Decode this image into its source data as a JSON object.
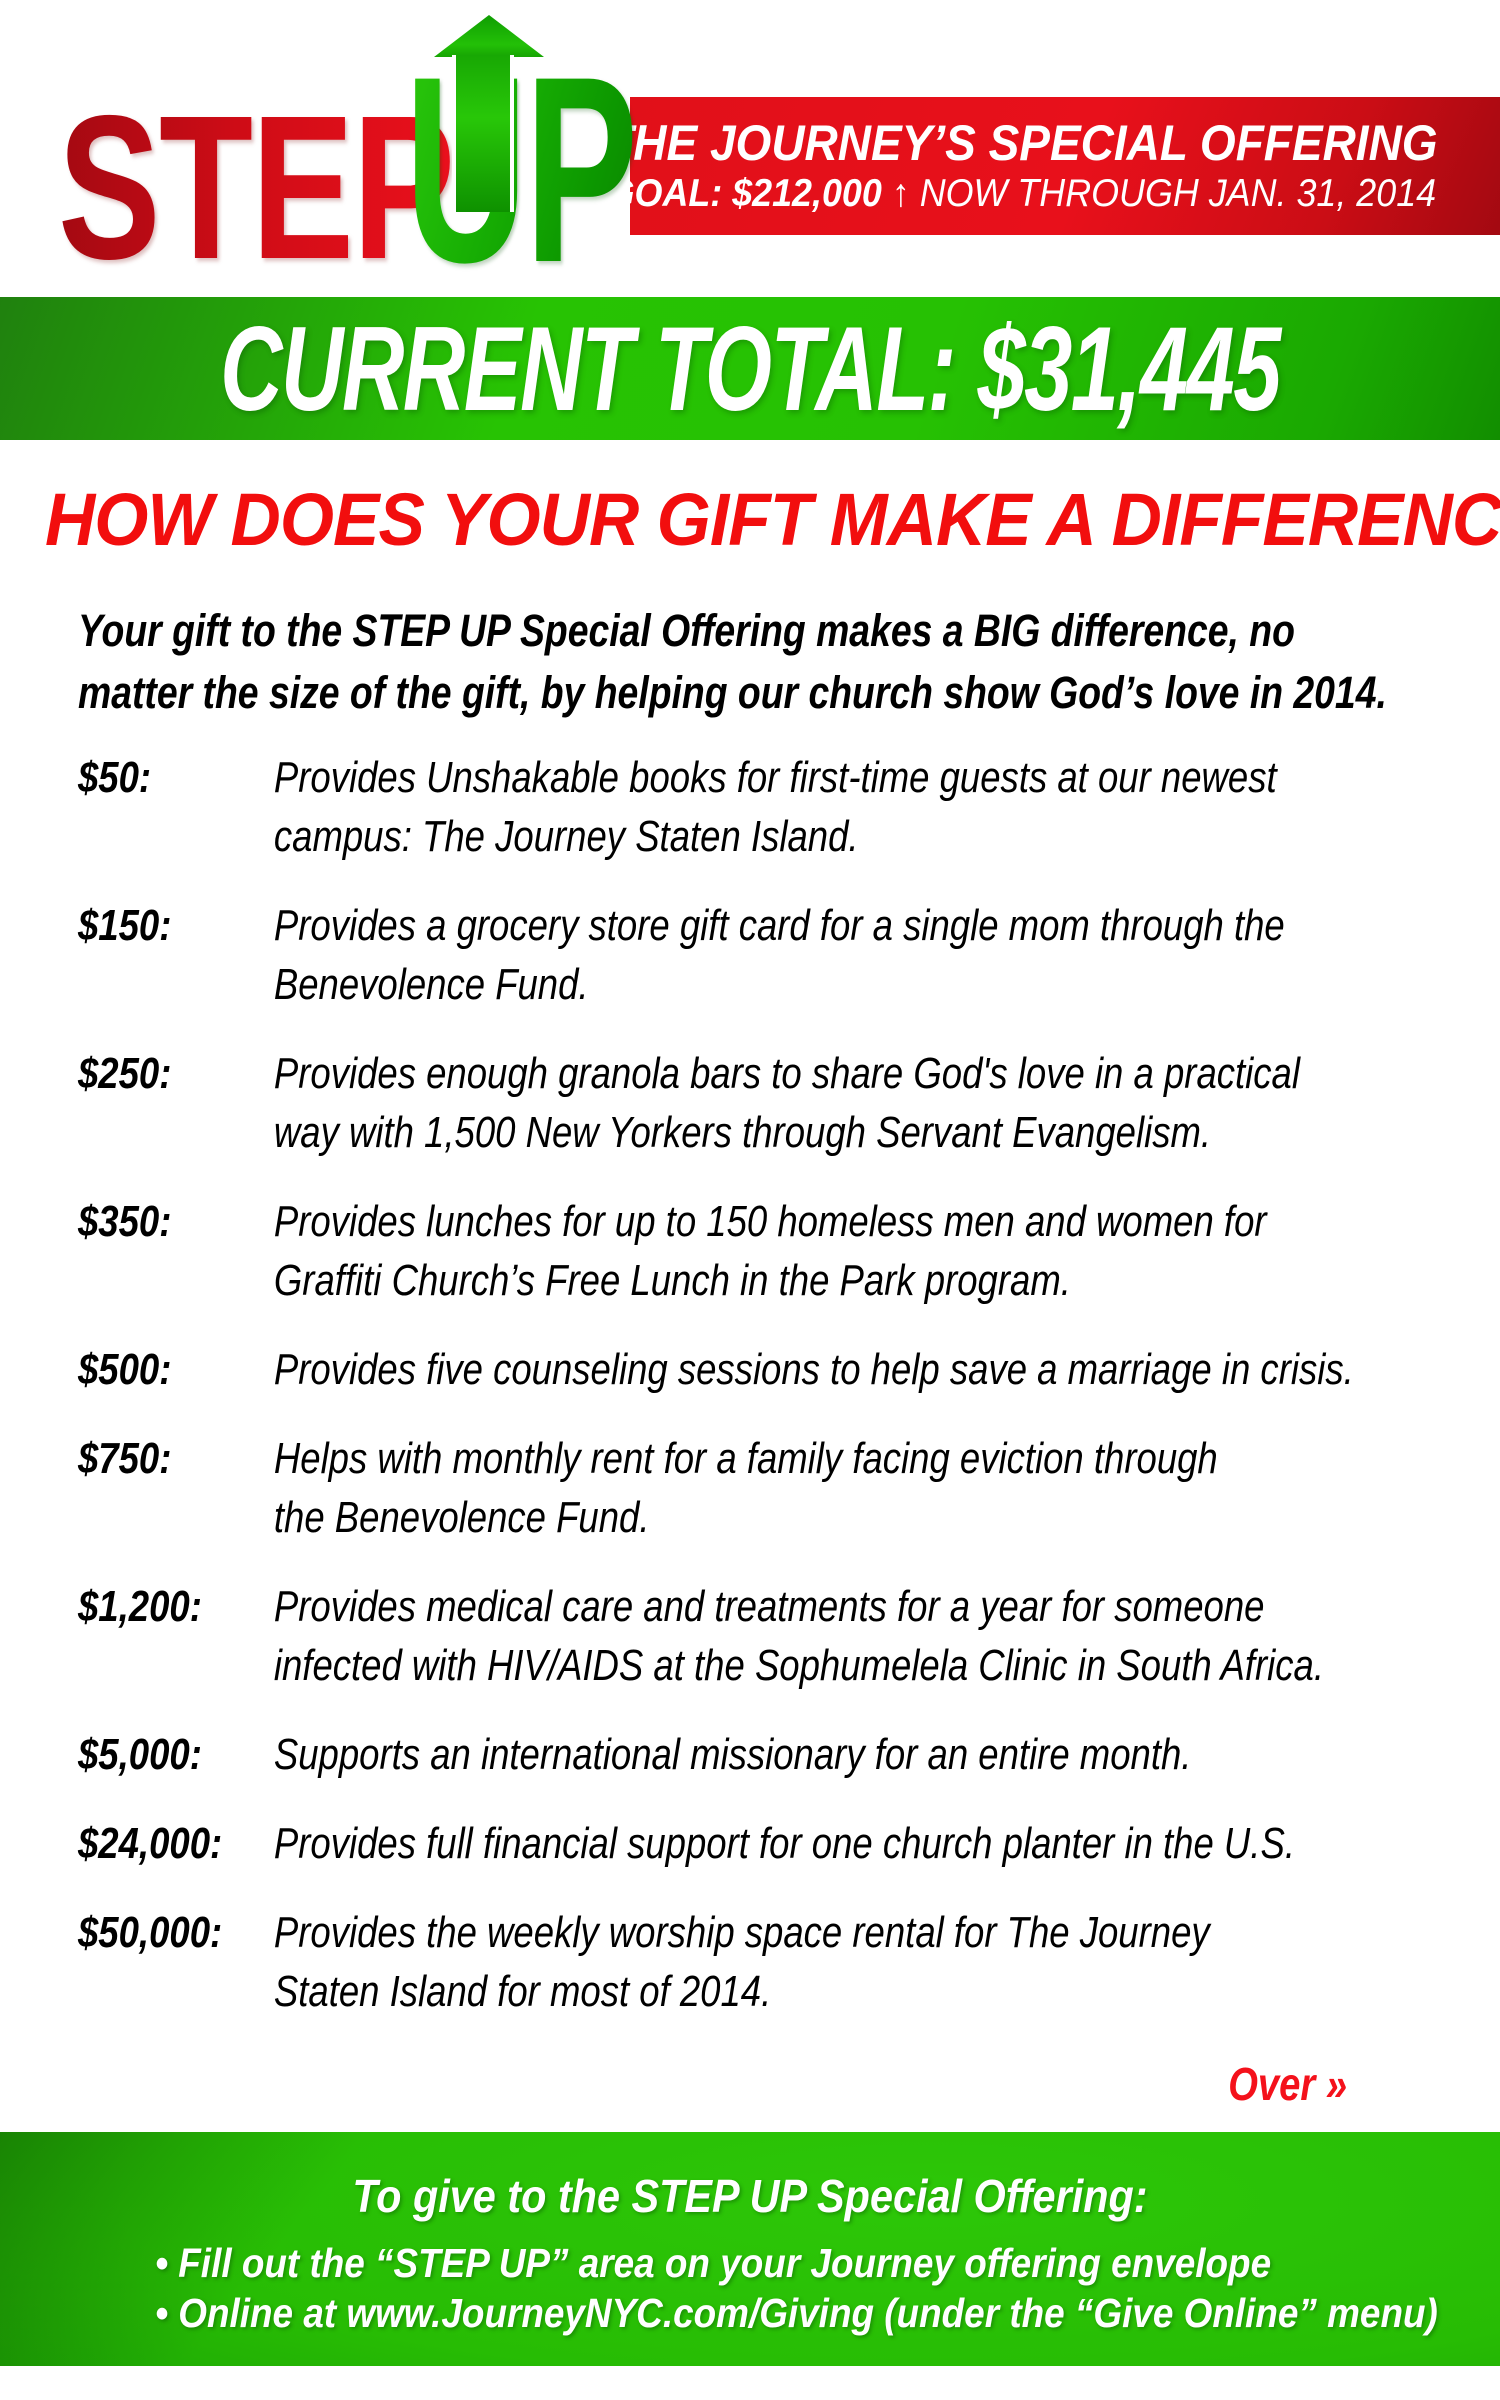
{
  "header": {
    "logo": {
      "step": "STEP",
      "up": "UP",
      "arrow_icon": "up-arrow"
    },
    "banner": {
      "line1": "THE JOURNEY’S SPECIAL OFFERING",
      "goal_bold": "GOAL: $212,000",
      "goal_rest": " ↑ NOW THROUGH JAN. 31, 2014"
    }
  },
  "total_bar": {
    "text": "CURRENT TOTAL: $31,445"
  },
  "headline": "HOW DOES YOUR GIFT MAKE A DIFFERENCE?",
  "intro_lines": [
    "Your gift to the STEP UP Special Offering makes a BIG difference, no",
    "matter the size of the gift, by helping our church show God’s love in 2014."
  ],
  "items": [
    {
      "amount": "$50:",
      "lines": [
        "Provides Unshakable books for first-time guests at our newest",
        "campus: The Journey Staten Island."
      ]
    },
    {
      "amount": "$150:",
      "lines": [
        "Provides a grocery store gift card for a single mom through the",
        "Benevolence Fund."
      ]
    },
    {
      "amount": "$250:",
      "lines": [
        "Provides enough granola bars to share God's love in a practical",
        "way with 1,500 New Yorkers through Servant Evangelism."
      ]
    },
    {
      "amount": "$350:",
      "lines": [
        "Provides lunches for up to 150 homeless men and women for",
        "Graffiti Church’s Free Lunch in the Park program."
      ]
    },
    {
      "amount": "$500:",
      "lines": [
        "Provides five counseling sessions to help save a marriage in crisis."
      ]
    },
    {
      "amount": "$750:",
      "lines": [
        "Helps with monthly rent for a family facing eviction through",
        "the Benevolence Fund."
      ]
    },
    {
      "amount": "$1,200:",
      "lines": [
        "Provides medical care and treatments for a year for someone",
        "infected with HIV/AIDS at the Sophumelela Clinic in South Africa."
      ]
    },
    {
      "amount": "$5,000:",
      "lines": [
        "Supports an international missionary for an entire month."
      ]
    },
    {
      "amount": "$24,000:",
      "lines": [
        "Provides full financial support for one church planter in the U.S."
      ]
    },
    {
      "amount": "$50,000:",
      "lines": [
        "Provides the weekly worship space rental for The Journey",
        "Staten Island for most of 2014."
      ]
    }
  ],
  "over_label": "Over »",
  "footer": {
    "heading": "To give to the STEP UP Special Offering:",
    "bullets": [
      "• Fill out the “STEP UP” area on your Journey offering envelope",
      "• Online at www.JourneyNYC.com/Giving (under the “Give Online” menu)"
    ]
  },
  "colors": {
    "banner_red": "#e8101b",
    "headline_red": "#f20e0e",
    "bright_green": "#27c303",
    "dark_green": "#158103",
    "white": "#ffffff"
  }
}
